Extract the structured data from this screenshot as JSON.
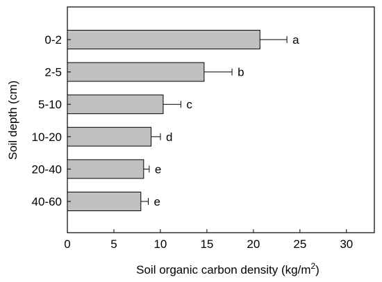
{
  "chart_data": {
    "type": "bar",
    "orientation": "horizontal",
    "categories": [
      "0-2",
      "2-5",
      "5-10",
      "10-20",
      "20-40",
      "40-60"
    ],
    "values": [
      20.7,
      14.7,
      10.3,
      9.0,
      8.2,
      7.9
    ],
    "errors": [
      2.9,
      3.0,
      1.9,
      1.0,
      0.6,
      0.8
    ],
    "letters": [
      "a",
      "b",
      "c",
      "d",
      "e",
      "e"
    ],
    "xlabel": "Soil organic carbon density (kg/m",
    "xlabel_sup": "2",
    "xlabel_close": ")",
    "ylabel": "Soil depth (cm)",
    "xlim": [
      0,
      33
    ],
    "xticks": [
      0,
      5,
      10,
      15,
      20,
      25,
      30
    ],
    "grid": false,
    "bar_color": "#c0c0c0",
    "bar_edge": "#000000"
  }
}
